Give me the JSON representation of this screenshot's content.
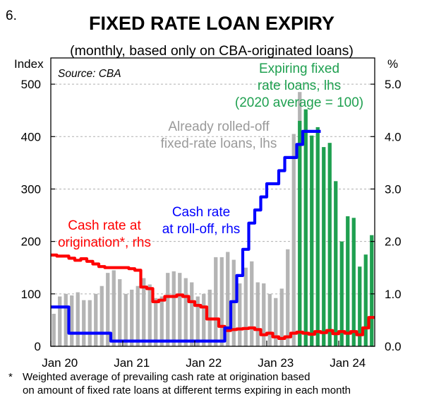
{
  "chart_number": "6.",
  "footnote": {
    "marker": "*",
    "line1": "Weighted average of prevailing cash rate at origination based",
    "line2": "on amount of fixed rate loans at different terms expiring in each month"
  },
  "chart_data": {
    "type": "bar",
    "title": "FIXED RATE LOAN EXPIRY",
    "subtitle": "(monthly, based only on CBA-originated loans)",
    "source": "Source: CBA",
    "ylabel_left": "Index",
    "ylabel_right": "%",
    "ylim_left": [
      0,
      550
    ],
    "ylim_right": [
      0,
      5.5
    ],
    "y_ticks_left": [
      0,
      100,
      200,
      300,
      400,
      500
    ],
    "y_ticks_right": [
      "0.0",
      "1.0",
      "2.0",
      "3.0",
      "4.0",
      "5.0"
    ],
    "grid": true,
    "x_ticks": [
      {
        "label": "Jan 20",
        "index": 0
      },
      {
        "label": "Jan 21",
        "index": 12
      },
      {
        "label": "Jan 22",
        "index": 24
      },
      {
        "label": "Jan 23",
        "index": 36
      },
      {
        "label": "Jan 24",
        "index": 48
      }
    ],
    "months": 54,
    "series": [
      {
        "label_lines": [
          "Already rolled-off",
          "fixed-rate loans, lhs"
        ],
        "kind": "bar",
        "axis": "left",
        "color": "#b4b4b4",
        "start_index": 0,
        "values": [
          62,
          95,
          100,
          97,
          103,
          88,
          88,
          100,
          115,
          140,
          145,
          128,
          100,
          108,
          115,
          130,
          118,
          92,
          95,
          140,
          143,
          140,
          130,
          122,
          95,
          100,
          108,
          170,
          170,
          180,
          165,
          120,
          150,
          162,
          122,
          120,
          100,
          92,
          110,
          185,
          405,
          485,
          445
        ]
      },
      {
        "label_lines": [
          "Expiring fixed",
          "rate loans, lhs",
          "(2020 average = 100)"
        ],
        "kind": "bar",
        "axis": "left",
        "color": "#1fa050",
        "start_index": 41,
        "values": [
          430,
          452,
          402,
          418,
          380,
          388,
          315,
          200,
          248,
          245,
          152,
          175,
          212
        ]
      },
      {
        "label_lines": [
          "Cash rate at",
          "origination*, rhs"
        ],
        "kind": "line",
        "axis": "right",
        "color": "#ff0000",
        "start_index": 0,
        "values": [
          1.74,
          1.72,
          1.72,
          1.68,
          1.64,
          1.67,
          1.62,
          1.57,
          1.52,
          1.5,
          1.5,
          1.5,
          1.5,
          1.48,
          1.45,
          1.13,
          1.1,
          0.85,
          0.88,
          0.95,
          0.95,
          0.98,
          0.95,
          0.85,
          0.78,
          0.75,
          0.52,
          0.52,
          0.38,
          0.3,
          0.32,
          0.33,
          0.34,
          0.35,
          0.32,
          0.22,
          0.25,
          0.18,
          0.15,
          0.18,
          0.25,
          0.27,
          0.25,
          0.23,
          0.28,
          0.26,
          0.3,
          0.24,
          0.28,
          0.25,
          0.28,
          0.22,
          0.35,
          0.55
        ]
      },
      {
        "label_lines": [
          "Cash rate",
          "at roll-off, rhs"
        ],
        "kind": "line",
        "axis": "right",
        "color": "#0000ff",
        "start_index": 0,
        "values": [
          0.75,
          0.75,
          0.75,
          0.25,
          0.25,
          0.25,
          0.25,
          0.25,
          0.25,
          0.25,
          0.1,
          0.1,
          0.1,
          0.1,
          0.1,
          0.1,
          0.1,
          0.1,
          0.1,
          0.1,
          0.1,
          0.1,
          0.1,
          0.1,
          0.1,
          0.1,
          0.1,
          0.1,
          0.1,
          0.35,
          0.85,
          1.35,
          1.85,
          2.35,
          2.6,
          2.85,
          3.1,
          3.1,
          3.35,
          3.6,
          3.6,
          3.85,
          4.1,
          4.1,
          4.1
        ]
      }
    ]
  }
}
